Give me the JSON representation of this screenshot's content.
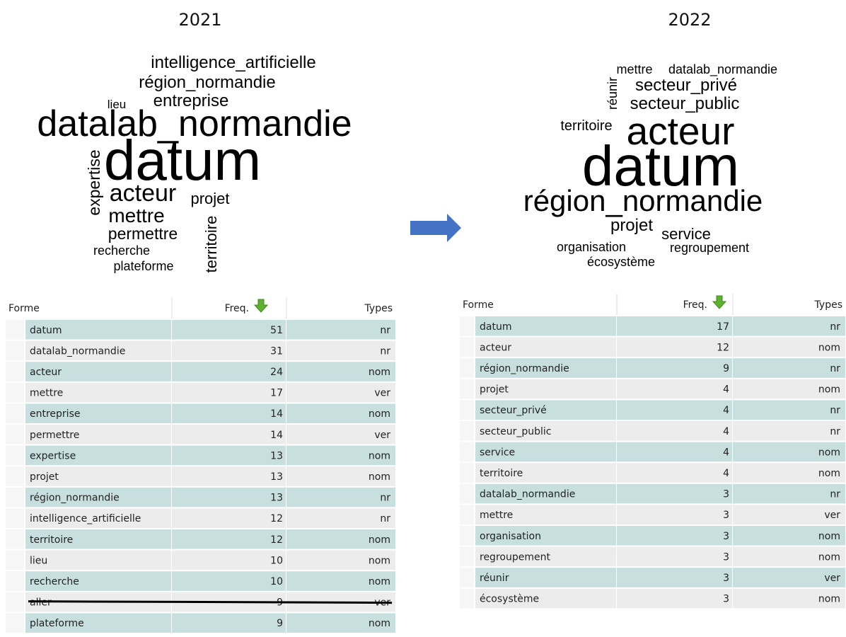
{
  "panels": [
    {
      "title": "2021",
      "cloud": {
        "words": [
          "intelligence_artificielle",
          "région_normandie",
          "lieu",
          "entreprise",
          "datalab_normandie",
          "expertise",
          "datum",
          "acteur",
          "projet",
          "mettre",
          "permettre",
          "territoire",
          "recherche",
          "plateforme"
        ]
      },
      "table": {
        "header": [
          "Forme",
          "Freq.",
          "Types"
        ],
        "rows": [
          [
            "datum",
            51,
            "nr"
          ],
          [
            "datalab_normandie",
            31,
            "nr"
          ],
          [
            "acteur",
            24,
            "nom"
          ],
          [
            "mettre",
            17,
            "ver"
          ],
          [
            "entreprise",
            14,
            "nom"
          ],
          [
            "permettre",
            14,
            "ver"
          ],
          [
            "expertise",
            13,
            "nom"
          ],
          [
            "projet",
            13,
            "nom"
          ],
          [
            "région_normandie",
            13,
            "nr"
          ],
          [
            "intelligence_artificielle",
            12,
            "nr"
          ],
          [
            "territoire",
            12,
            "nom"
          ],
          [
            "lieu",
            10,
            "nom"
          ],
          [
            "recherche",
            10,
            "nom"
          ],
          [
            "aller",
            9,
            "ver"
          ],
          [
            "plateforme",
            9,
            "nom"
          ]
        ]
      }
    },
    {
      "title": "2022",
      "cloud": {
        "words": [
          "mettre",
          "datalab_normandie",
          "réunir",
          "secteur_privé",
          "secteur_public",
          "territoire",
          "acteur",
          "datum",
          "région_normandie",
          "projet",
          "service",
          "organisation",
          "regroupement",
          "écosystème"
        ]
      },
      "table": {
        "header": [
          "Forme",
          "Freq.",
          "Types"
        ],
        "rows": [
          [
            "datum",
            17,
            "nr"
          ],
          [
            "acteur",
            12,
            "nom"
          ],
          [
            "région_normandie",
            9,
            "nr"
          ],
          [
            "projet",
            4,
            "nom"
          ],
          [
            "secteur_privé",
            4,
            "nr"
          ],
          [
            "secteur_public",
            4,
            "nr"
          ],
          [
            "service",
            4,
            "nom"
          ],
          [
            "territoire",
            4,
            "nom"
          ],
          [
            "datalab_normandie",
            3,
            "nr"
          ],
          [
            "mettre",
            3,
            "ver"
          ],
          [
            "organisation",
            3,
            "nom"
          ],
          [
            "regroupement",
            3,
            "nom"
          ],
          [
            "réunir",
            3,
            "ver"
          ],
          [
            "écosystème",
            3,
            "nom"
          ]
        ]
      }
    }
  ]
}
